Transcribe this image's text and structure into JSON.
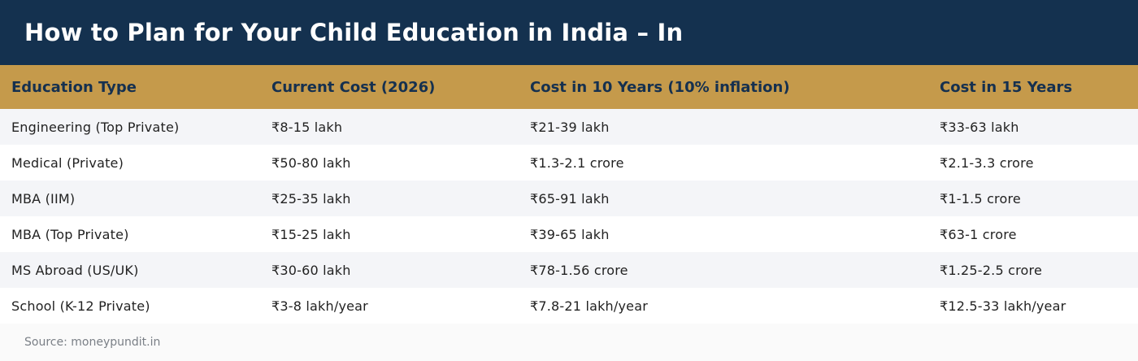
{
  "title": "How to Plan for Your Child Education in India – In",
  "table": {
    "headers": [
      "Education Type",
      "Current Cost (2026)",
      "Cost in 10 Years (10% inflation)",
      "Cost in 15 Years"
    ],
    "rows": [
      [
        "Engineering (Top Private)",
        "₹8-15 lakh",
        "₹21-39 lakh",
        "₹33-63 lakh"
      ],
      [
        "Medical (Private)",
        "₹50-80 lakh",
        "₹1.3-2.1 crore",
        "₹2.1-3.3 crore"
      ],
      [
        "MBA (IIM)",
        "₹25-35 lakh",
        "₹65-91 lakh",
        "₹1-1.5 crore"
      ],
      [
        "MBA (Top Private)",
        "₹15-25 lakh",
        "₹39-65 lakh",
        "₹63-1 crore"
      ],
      [
        "MS Abroad (US/UK)",
        "₹30-60 lakh",
        "₹78-1.56 crore",
        "₹1.25-2.5 crore"
      ],
      [
        "School (K-12 Private)",
        "₹3-8 lakh/year",
        "₹7.8-21 lakh/year",
        "₹12.5-33 lakh/year"
      ]
    ]
  },
  "source": "Source: moneypundit.in",
  "colors": {
    "title_bg": "#14314f",
    "header_bg": "#c59a4b",
    "header_text": "#15304f",
    "row_alt": "#f4f5f8"
  }
}
